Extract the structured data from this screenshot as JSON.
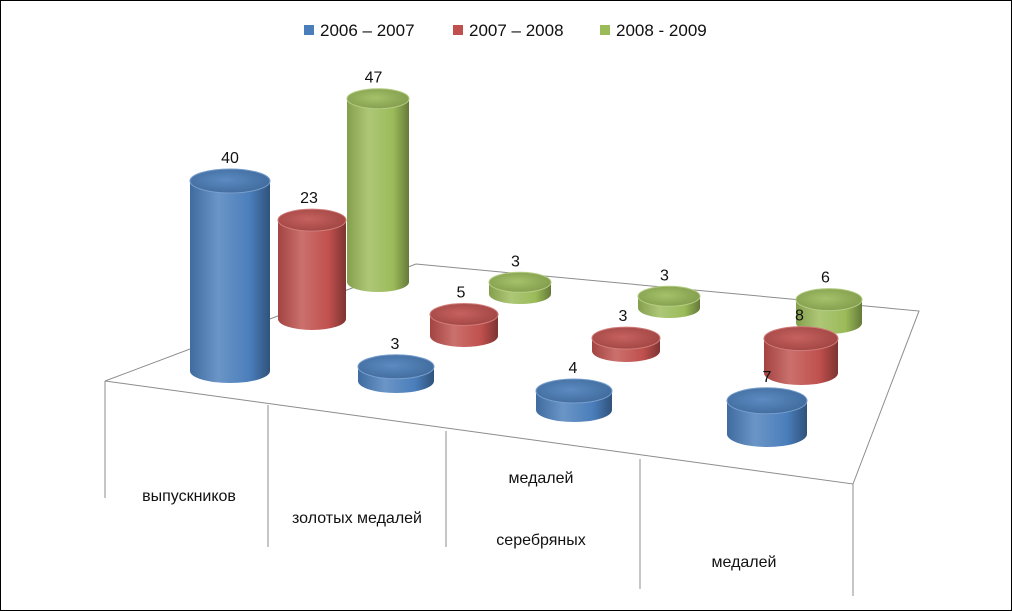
{
  "chart_data": {
    "type": "bar",
    "style": "3d-cylinder",
    "title": "",
    "categories": [
      [
        "выпускников"
      ],
      [
        "золотых медалей"
      ],
      [
        "медалей",
        "серебряных"
      ],
      [
        "медалей"
      ]
    ],
    "series": [
      {
        "name": "2006 – 2007",
        "color": "#4a7ebb",
        "values": [
          40,
          3,
          4,
          7
        ]
      },
      {
        "name": "2007 – 2008",
        "color": "#c0504d",
        "values": [
          23,
          5,
          3,
          8
        ]
      },
      {
        "name": "2008 - 2009",
        "color": "#9bbb59",
        "values": [
          47,
          3,
          3,
          6
        ]
      }
    ],
    "legend_position": "top",
    "grid": false
  }
}
